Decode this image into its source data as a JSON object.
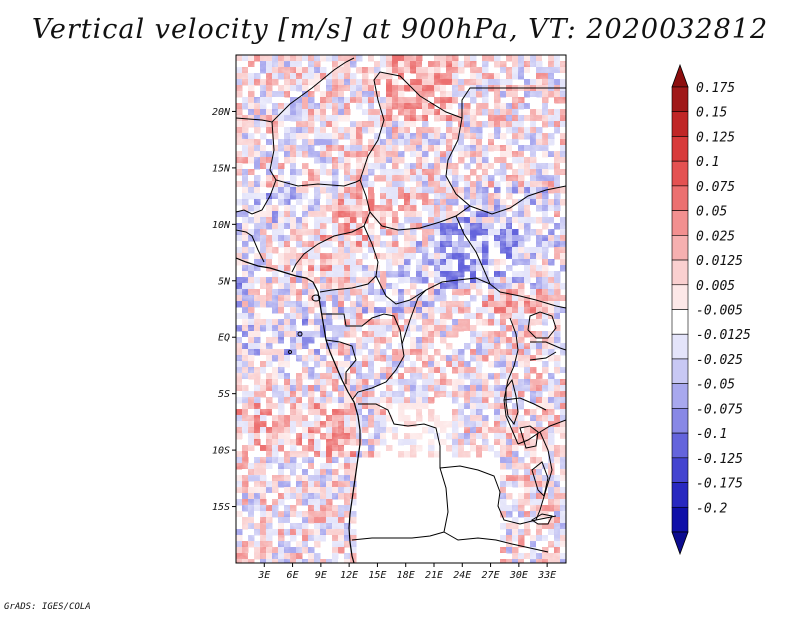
{
  "title": "Vertical velocity [m/s] at 900hPa, VT: 2020032812",
  "credit": "GrADS: IGES/COLA",
  "map": {
    "lon_range": [
      0,
      35
    ],
    "lat_range": [
      -20,
      25
    ],
    "lat_ticks": [
      {
        "value": 20,
        "label": "20N"
      },
      {
        "value": 15,
        "label": "15N"
      },
      {
        "value": 10,
        "label": "10N"
      },
      {
        "value": 5,
        "label": "5N"
      },
      {
        "value": 0,
        "label": "EQ"
      },
      {
        "value": -5,
        "label": "5S"
      },
      {
        "value": -10,
        "label": "10S"
      },
      {
        "value": -15,
        "label": "15S"
      }
    ],
    "lon_ticks": [
      {
        "value": 3,
        "label": "3E"
      },
      {
        "value": 6,
        "label": "6E"
      },
      {
        "value": 9,
        "label": "9E"
      },
      {
        "value": 12,
        "label": "12E"
      },
      {
        "value": 15,
        "label": "15E"
      },
      {
        "value": 18,
        "label": "18E"
      },
      {
        "value": 21,
        "label": "21E"
      },
      {
        "value": 24,
        "label": "24E"
      },
      {
        "value": 27,
        "label": "27E"
      },
      {
        "value": 30,
        "label": "30E"
      },
      {
        "value": 33,
        "label": "33E"
      }
    ]
  },
  "colorbar": {
    "levels": [
      {
        "label": "0.175",
        "color": "#a01818"
      },
      {
        "label": "0.15",
        "color": "#c02626"
      },
      {
        "label": "0.125",
        "color": "#d83a3a"
      },
      {
        "label": "0.1",
        "color": "#e45252"
      },
      {
        "label": "0.075",
        "color": "#ec7070"
      },
      {
        "label": "0.05",
        "color": "#f29090"
      },
      {
        "label": "0.025",
        "color": "#f6b0b0"
      },
      {
        "label": "0.0125",
        "color": "#fad0d0"
      },
      {
        "label": "0.005",
        "color": "#fde8e8"
      },
      {
        "label": "-0.005",
        "color": "#ffffff"
      },
      {
        "label": "-0.0125",
        "color": "#e4e4fa"
      },
      {
        "label": "-0.025",
        "color": "#c8c8f4"
      },
      {
        "label": "-0.05",
        "color": "#a8a8ee"
      },
      {
        "label": "-0.075",
        "color": "#8888e6"
      },
      {
        "label": "-0.1",
        "color": "#6464dc"
      },
      {
        "label": "-0.125",
        "color": "#4444d0"
      },
      {
        "label": "-0.175",
        "color": "#2828c0"
      },
      {
        "label": "-0.2",
        "color": "#1010a8"
      }
    ],
    "top_triangle_color": "#8c0e0e",
    "bottom_triangle_color": "#0c0c90"
  }
}
